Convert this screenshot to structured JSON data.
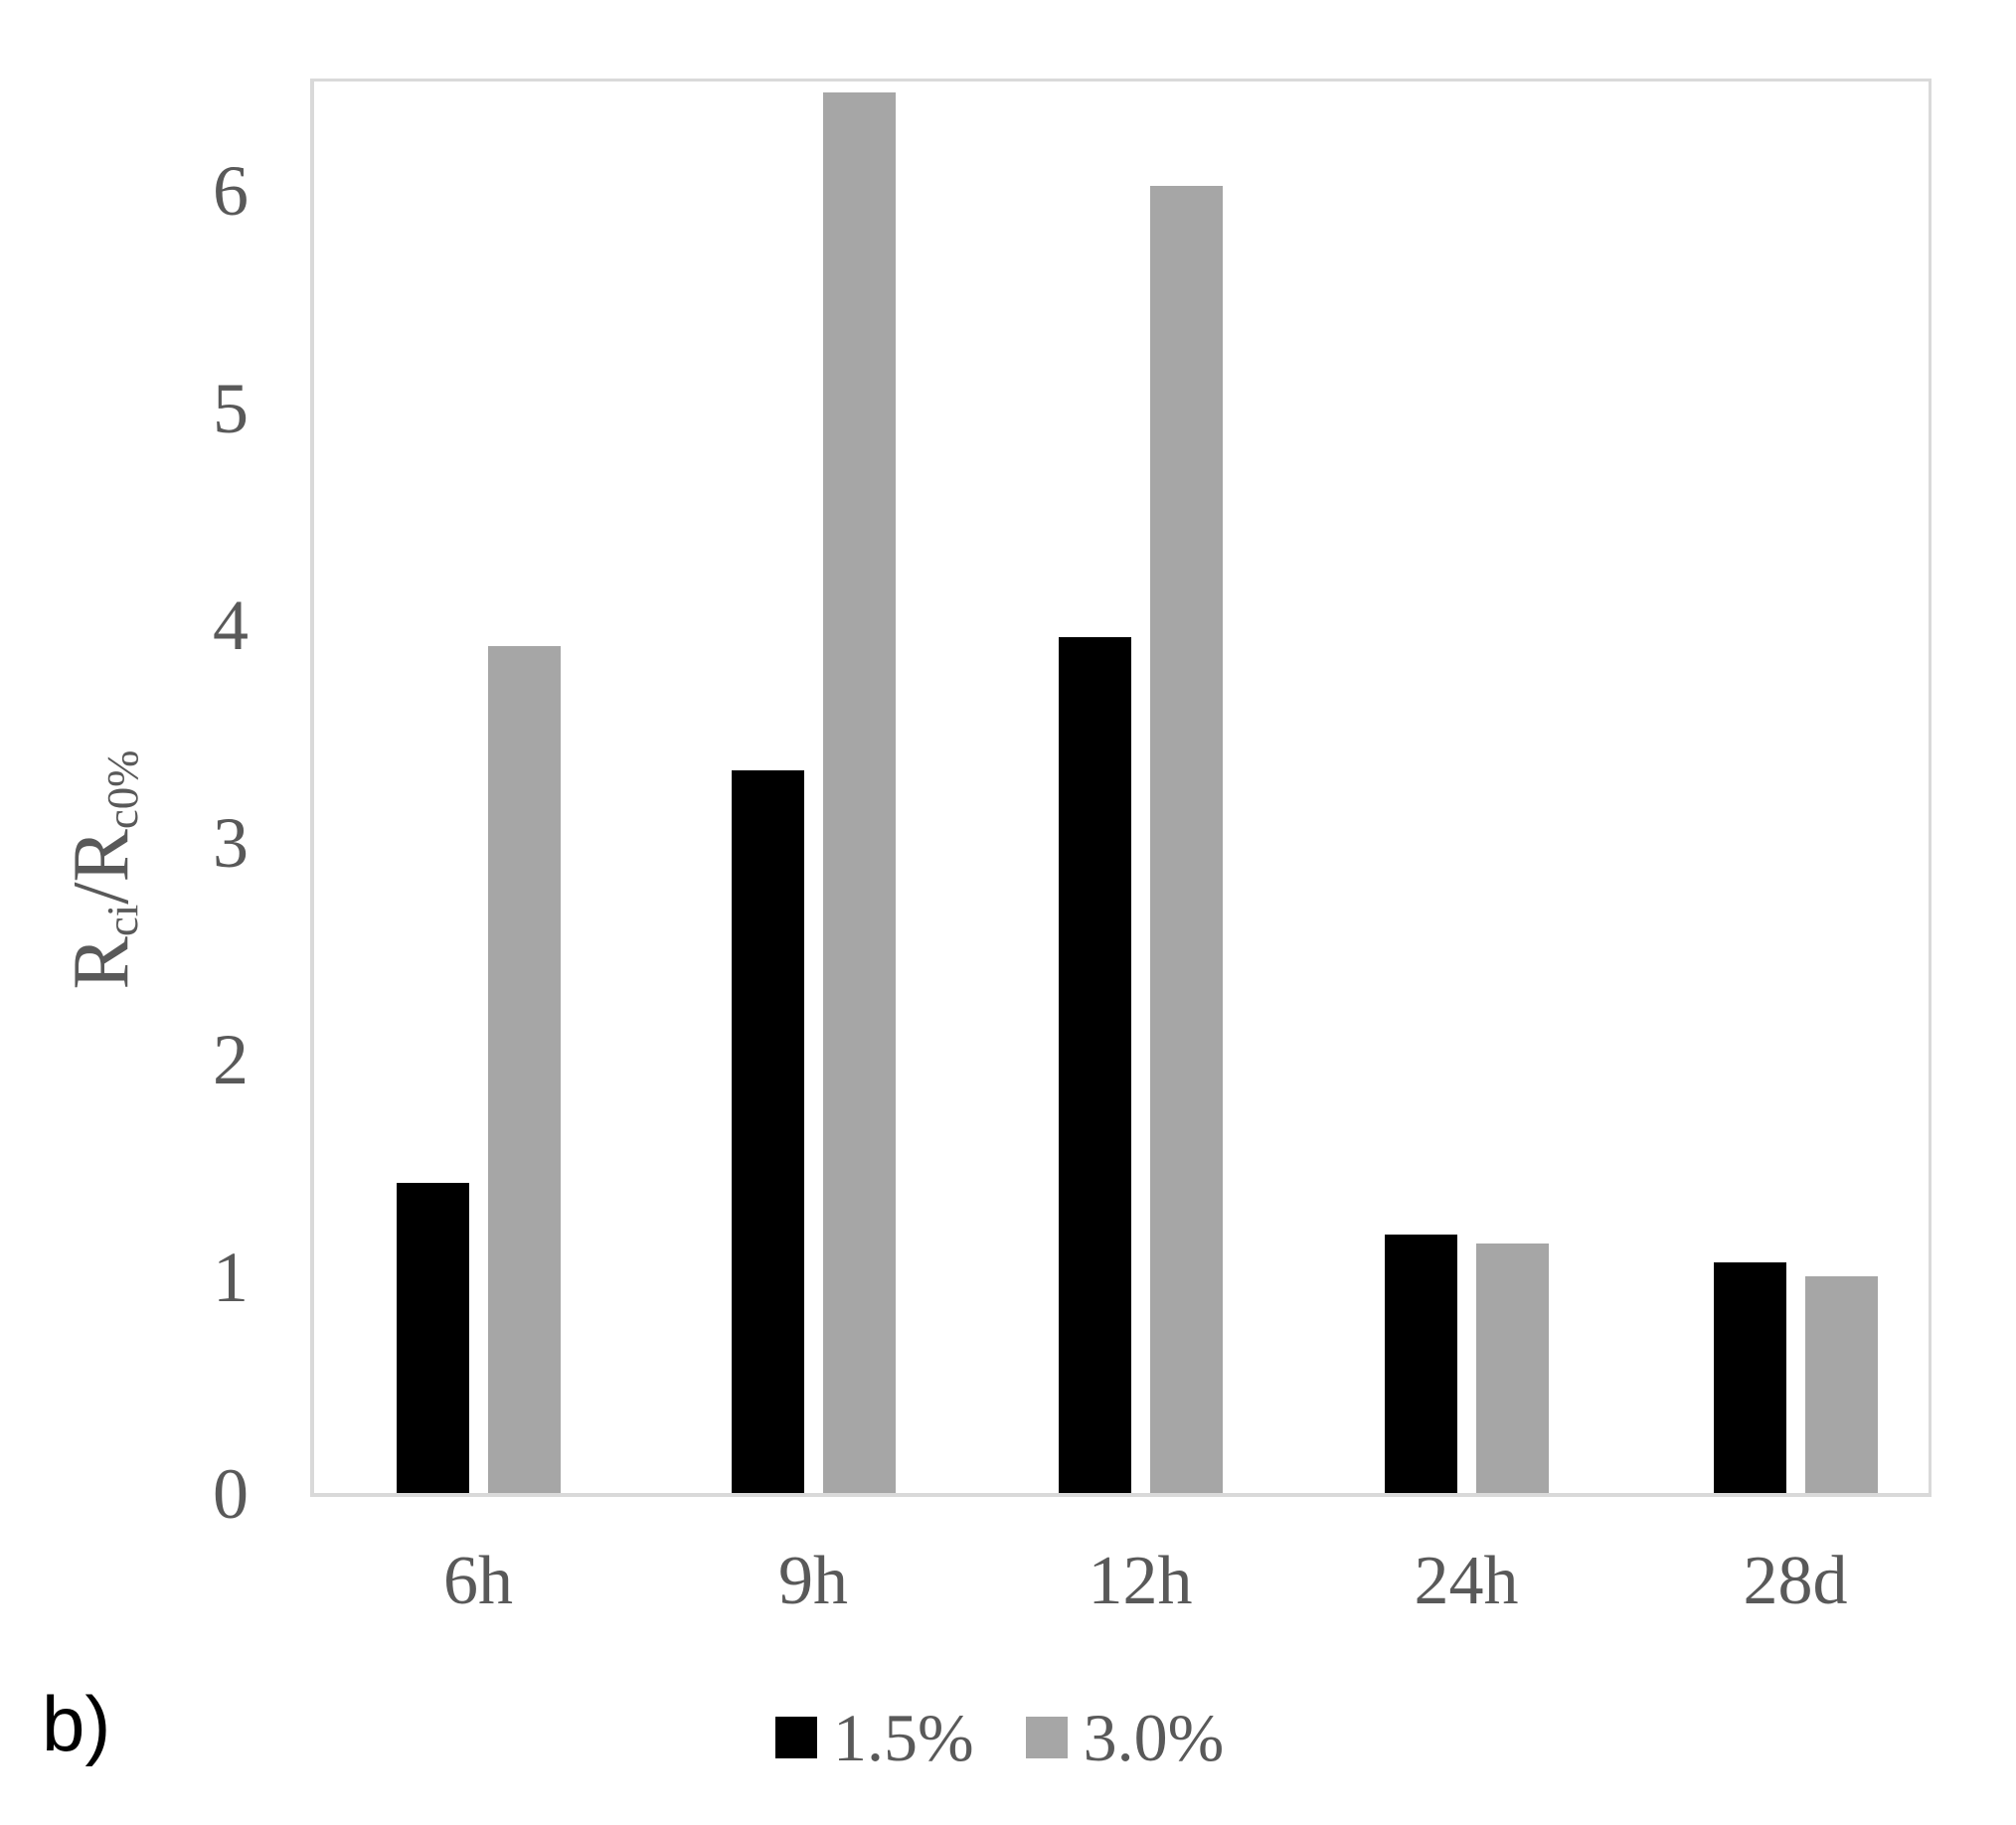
{
  "figure_label": "b)",
  "colors": {
    "series_1_5pct": "#000000",
    "series_3_0pct": "#a6a6a6",
    "axis_line": "#d9d9d9",
    "tick_text": "#595959"
  },
  "chart_data": {
    "type": "bar",
    "title": "",
    "categories": [
      "6h",
      "9h",
      "12h",
      "24h",
      "28d"
    ],
    "series": [
      {
        "name": "1.5%",
        "color": "#000000",
        "values": [
          1.43,
          3.33,
          3.94,
          1.19,
          1.06
        ]
      },
      {
        "name": "3.0%",
        "color": "#a6a6a6",
        "values": [
          3.9,
          6.45,
          6.02,
          1.15,
          1.0
        ]
      }
    ],
    "xlabel": "",
    "ylabel": "Rci/Rc0%",
    "ylabel_parts": {
      "base1": "R",
      "sub1": "ci",
      "sep": "/",
      "base2": "R",
      "sub2": "c0%"
    },
    "yticks": [
      0,
      1,
      2,
      3,
      4,
      5,
      6
    ],
    "ylim": [
      0,
      6.5
    ],
    "grid": false,
    "legend_position": "bottom-center"
  }
}
